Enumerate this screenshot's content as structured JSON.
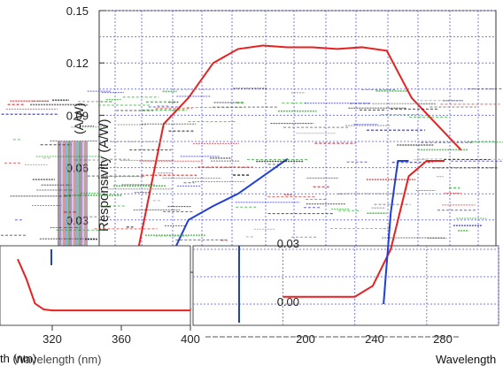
{
  "chart_data": [
    {
      "type": "line",
      "ylabel": "Responsivity (A/W)",
      "yticks": [
        "0.15",
        "0.12",
        "0.09",
        "0.06",
        "0.03"
      ],
      "ylim": [
        0.0,
        0.15
      ],
      "grid": true,
      "series": [
        {
          "color": "#e8201f",
          "x": [
            278,
            283,
            288,
            293,
            298,
            303,
            308,
            313,
            318,
            323,
            328,
            333,
            338,
            343
          ],
          "y": [
            0.015,
            0.085,
            0.1,
            0.12,
            0.128,
            0.13,
            0.129,
            0.129,
            0.128,
            0.129,
            0.127,
            0.1,
            0.085,
            0.07
          ]
        },
        {
          "color": "#1f3fd8",
          "x": [
            283,
            288,
            293,
            298,
            303,
            308
          ],
          "y": [
            0.0,
            0.03,
            0.038,
            0.045,
            0.055,
            0.065
          ]
        }
      ]
    },
    {
      "type": "line",
      "xlabel": "Wavelength (nm)",
      "xticks": [
        "320",
        "360",
        "400"
      ],
      "series": [
        {
          "color": "#e8201f",
          "x": [
            300,
            305,
            310,
            315,
            320,
            340,
            360,
            380,
            400
          ],
          "y": [
            0.06,
            0.04,
            0.015,
            0.009,
            0.008,
            0.008,
            0.008,
            0.008,
            0.008
          ]
        }
      ]
    },
    {
      "type": "line",
      "xlabel": "Wavelength",
      "xticks": [
        "200",
        "240",
        "280"
      ],
      "yticks": [
        "0.03",
        "0.00"
      ],
      "series": [
        {
          "color": "#e8201f",
          "x": [
            180,
            190,
            200,
            210,
            220,
            230,
            240,
            250,
            260,
            270
          ],
          "y": [
            0.004,
            0.004,
            0.004,
            0.004,
            0.004,
            0.01,
            0.03,
            0.07,
            0.11,
            0.13
          ]
        },
        {
          "color": "#1f3fd8",
          "x": [
            236,
            240,
            244,
            250
          ],
          "y": [
            0.0,
            0.05,
            0.09,
            0.1
          ]
        }
      ]
    }
  ],
  "axis_text": {
    "left_xlabel_fragment": "th (nm)",
    "overlap_xlabel": "Wavelength (nm)",
    "right_ylabel_fragment": "(A/W)"
  }
}
